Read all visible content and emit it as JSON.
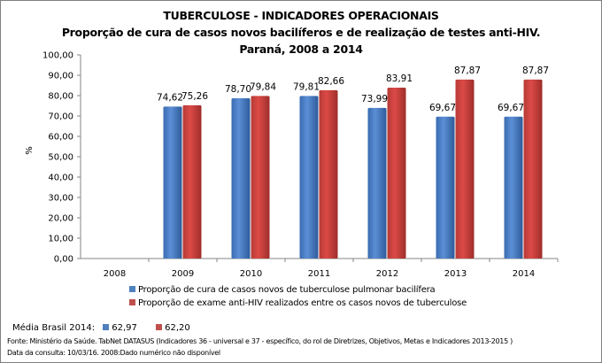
{
  "chart_data": {
    "type": "bar",
    "title": "TUBERCULOSE - INDICADORES OPERACIONAIS",
    "subtitle": "Proporção de cura de casos novos bacilíferos e de realização de testes anti-HIV.",
    "subtitle2": "Paraná, 2008 a 2014",
    "ylabel": "%",
    "xlabel": "",
    "ylim": [
      0,
      100
    ],
    "yticks": [
      "0,00",
      "10,00",
      "20,00",
      "30,00",
      "40,00",
      "50,00",
      "60,00",
      "70,00",
      "80,00",
      "90,00",
      "100,00"
    ],
    "categories": [
      "2008",
      "2009",
      "2010",
      "2011",
      "2012",
      "2013",
      "2014"
    ],
    "series": [
      {
        "name": "Proporção de cura de casos novos de tuberculose pulmonar bacilífera",
        "color": "#4f81bd",
        "values": [
          null,
          74.62,
          78.7,
          79.81,
          73.99,
          69.67,
          69.67
        ],
        "labels": [
          "",
          "74,62",
          "78,70",
          "79,81",
          "73,99",
          "69,67",
          "69,67"
        ]
      },
      {
        "name": "Proporção de exame anti-HIV realizados entre os casos novos de tuberculose",
        "color": "#c0504d",
        "values": [
          null,
          75.26,
          79.84,
          82.66,
          83.91,
          87.87,
          87.87
        ],
        "labels": [
          "",
          "75,26",
          "79,84",
          "82,66",
          "83,91",
          "87,87",
          "87,87"
        ]
      }
    ],
    "grid": false,
    "legend_position": "bottom"
  },
  "media": {
    "label": "Média Brasil 2014:",
    "blue_value": "62,97",
    "red_value": "62,20"
  },
  "footer": {
    "source": "Fonte: Ministério da Saúde. TabNet DATASUS (Indicadores 36 - universal e 37 - específico, do rol de Diretrizes, Objetivos, Metas e Indicadores 2013-2015 )",
    "note": "Data da consulta: 10/03/16. 2008:Dado numérico não disponível"
  }
}
